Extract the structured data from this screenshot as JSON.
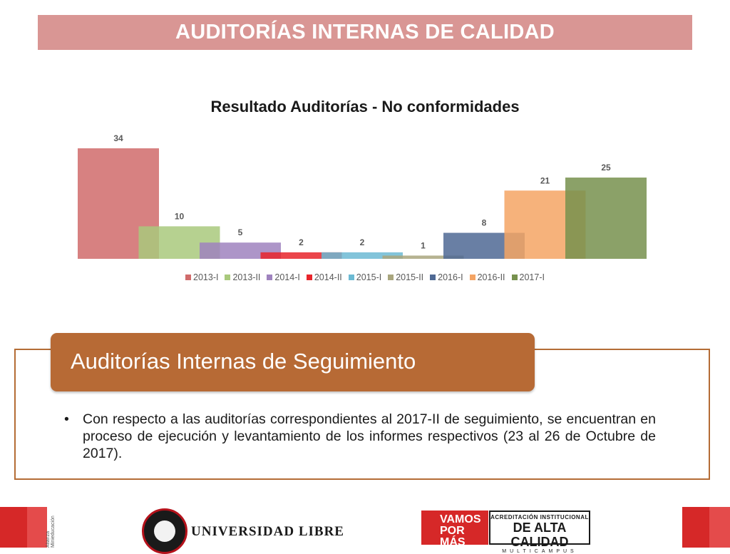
{
  "header": {
    "title": "AUDITORÍAS INTERNAS DE CALIDAD"
  },
  "chart_data": {
    "type": "bar",
    "title": "Resultado Auditorías - No conformidades",
    "xlabel": "",
    "ylabel": "",
    "ylim": [
      0,
      34
    ],
    "grid": false,
    "legend": "bottom",
    "series": [
      {
        "name": "2013-I",
        "value": 34,
        "color": "#d06b6b"
      },
      {
        "name": "2013-II",
        "value": 10,
        "color": "#a9c97c"
      },
      {
        "name": "2014-I",
        "value": 5,
        "color": "#9f83be"
      },
      {
        "name": "2014-II",
        "value": 2,
        "color": "#e8252b"
      },
      {
        "name": "2015-I",
        "value": 2,
        "color": "#6cbad3"
      },
      {
        "name": "2015-II",
        "value": 1,
        "color": "#a9a67e"
      },
      {
        "name": "2016-I",
        "value": 8,
        "color": "#4f6994"
      },
      {
        "name": "2016-II",
        "value": 21,
        "color": "#f4a464"
      },
      {
        "name": "2017-I",
        "value": 25,
        "color": "#77914e"
      }
    ]
  },
  "section": {
    "heading": "Auditorías Internas de Seguimiento",
    "bullet": "Con respecto a las auditorías correspondientes al 2017-II de seguimiento, se encuentran en proceso de ejecución y levantamiento de los informes respectivos (23 al 26 de Octubre de 2017)."
  },
  "footer": {
    "university_name": "UNIVERSIDAD LIBRE",
    "vamos": "VAMOS POR MÁS",
    "acred_line1": "ACREDITACIÓN INSTITUCIONAL",
    "acred_line2": "DE ALTA CALIDAD",
    "acred_line3": "MULTICAMPUS",
    "side_text": "Alianza Minieducación"
  }
}
